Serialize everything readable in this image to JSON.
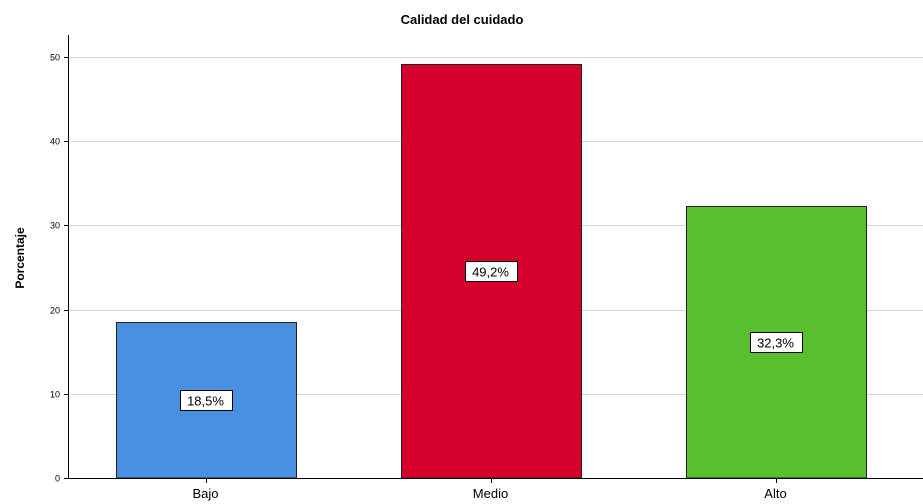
{
  "chart_data": {
    "type": "bar",
    "title": "Calidad del cuidado",
    "xlabel": "",
    "ylabel": "Porcentaje",
    "categories": [
      "Bajo",
      "Medio",
      "Alto"
    ],
    "values": [
      18.5,
      49.2,
      32.3
    ],
    "data_labels": [
      "18,5%",
      "49,2%",
      "32,3%"
    ],
    "colors": [
      "#4a90e2",
      "#d6002d",
      "#58bf2f"
    ],
    "ylim": [
      0,
      50
    ],
    "yticks": [
      0,
      10,
      20,
      30,
      40,
      50
    ],
    "ytick_labels": [
      "0",
      "10",
      "20",
      "30",
      "40",
      "50"
    ],
    "grid": true,
    "legend": "none"
  }
}
